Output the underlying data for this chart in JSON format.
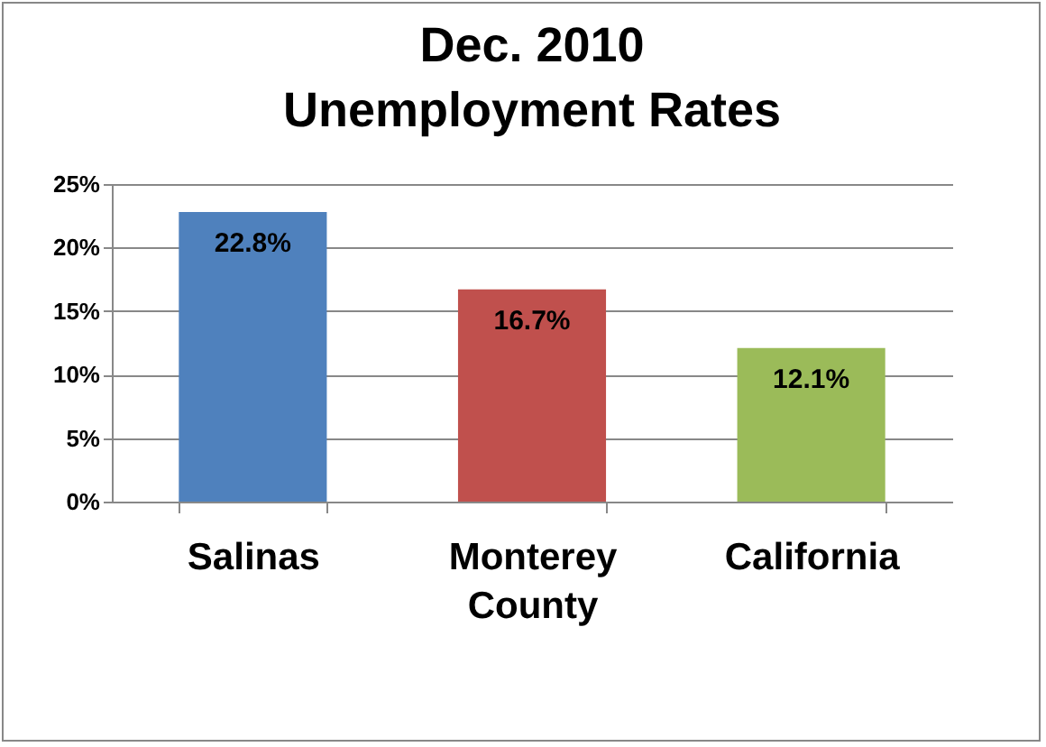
{
  "chart_data": {
    "type": "bar",
    "title": "Dec. 2010\nUnemployment Rates",
    "categories": [
      "Salinas",
      "Monterey County",
      "California"
    ],
    "values": [
      22.8,
      16.7,
      12.1
    ],
    "colors": [
      "#4f81bd",
      "#c0504d",
      "#9bbb59"
    ],
    "value_labels": [
      "22.8%",
      "16.7%",
      "12.1%"
    ],
    "ylim": [
      0,
      25
    ],
    "yticks": [
      {
        "value": 0,
        "label": "0%"
      },
      {
        "value": 5,
        "label": "5%"
      },
      {
        "value": 10,
        "label": "10%"
      },
      {
        "value": 15,
        "label": "15%"
      },
      {
        "value": 20,
        "label": "20%"
      },
      {
        "value": 25,
        "label": "25%"
      }
    ],
    "grid": "y"
  }
}
